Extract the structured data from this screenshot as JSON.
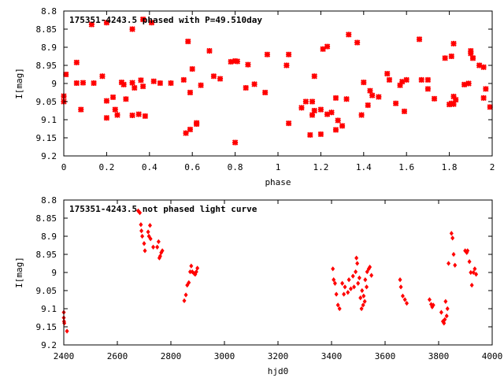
{
  "chart_data": [
    {
      "type": "scatter",
      "title": "175351-4243.5 phased with P=49.510day",
      "xlabel": "phase",
      "ylabel": "I[mag]",
      "xlim": [
        0,
        2
      ],
      "ylim": [
        9.2,
        8.8
      ],
      "y_inverted": true,
      "grid": false,
      "marker": "star",
      "color": "#ff0000",
      "x_ticks": [
        "0",
        "0.2",
        "0.4",
        "0.6",
        "0.8",
        "1",
        "1.2",
        "1.4",
        "1.6",
        "1.8",
        "2"
      ],
      "y_ticks": [
        "8.8",
        "8.85",
        "8.9",
        "8.95",
        "9",
        "9.05",
        "9.1",
        "9.15",
        "9.2"
      ],
      "series": [
        {
          "points": [
            [
              0.0,
              9.035
            ],
            [
              0.0,
              9.05
            ],
            [
              0.01,
              8.975
            ],
            [
              0.06,
              8.999
            ],
            [
              0.06,
              8.942
            ],
            [
              0.08,
              9.072
            ],
            [
              0.09,
              8.998
            ],
            [
              0.13,
              8.837
            ],
            [
              0.14,
              8.999
            ],
            [
              0.18,
              8.98
            ],
            [
              0.2,
              8.832
            ],
            [
              0.2,
              9.048
            ],
            [
              0.2,
              9.095
            ],
            [
              0.23,
              9.038
            ],
            [
              0.24,
              9.072
            ],
            [
              0.25,
              9.087
            ],
            [
              0.27,
              8.997
            ],
            [
              0.28,
              9.003
            ],
            [
              0.29,
              9.043
            ],
            [
              0.32,
              8.85
            ],
            [
              0.32,
              8.998
            ],
            [
              0.32,
              9.088
            ],
            [
              0.33,
              9.012
            ],
            [
              0.35,
              9.085
            ],
            [
              0.36,
              8.991
            ],
            [
              0.37,
              9.008
            ],
            [
              0.37,
              8.823
            ],
            [
              0.38,
              9.09
            ],
            [
              0.41,
              8.832
            ],
            [
              0.42,
              8.994
            ],
            [
              0.45,
              8.999
            ],
            [
              0.5,
              8.999
            ],
            [
              0.56,
              8.99
            ],
            [
              0.57,
              9.137
            ],
            [
              0.58,
              8.884
            ],
            [
              0.59,
              9.025
            ],
            [
              0.59,
              9.127
            ],
            [
              0.6,
              8.96
            ],
            [
              0.62,
              9.109
            ],
            [
              0.62,
              9.112
            ],
            [
              0.64,
              9.005
            ],
            [
              0.68,
              8.91
            ],
            [
              0.7,
              8.98
            ],
            [
              0.73,
              8.987
            ],
            [
              0.78,
              8.94
            ],
            [
              0.8,
              8.938
            ],
            [
              0.8,
              9.163
            ],
            [
              0.81,
              8.939
            ],
            [
              0.85,
              9.012
            ],
            [
              0.86,
              8.948
            ],
            [
              0.89,
              9.002
            ],
            [
              0.94,
              9.025
            ],
            [
              0.95,
              8.92
            ],
            [
              1.04,
              8.95
            ],
            [
              1.05,
              8.92
            ],
            [
              1.05,
              9.11
            ],
            [
              1.11,
              9.067
            ],
            [
              1.13,
              9.05
            ],
            [
              1.15,
              9.142
            ],
            [
              1.16,
              9.05
            ],
            [
              1.16,
              9.087
            ],
            [
              1.17,
              8.98
            ],
            [
              1.17,
              9.075
            ],
            [
              1.2,
              9.14
            ],
            [
              1.2,
              9.072
            ],
            [
              1.21,
              8.905
            ],
            [
              1.23,
              8.898
            ],
            [
              1.23,
              9.085
            ],
            [
              1.25,
              9.08
            ],
            [
              1.27,
              9.128
            ],
            [
              1.27,
              9.04
            ],
            [
              1.28,
              9.102
            ],
            [
              1.3,
              9.117
            ],
            [
              1.32,
              9.043
            ],
            [
              1.33,
              8.865
            ],
            [
              1.37,
              8.887
            ],
            [
              1.39,
              9.087
            ],
            [
              1.4,
              8.997
            ],
            [
              1.42,
              9.06
            ],
            [
              1.43,
              9.02
            ],
            [
              1.44,
              9.033
            ],
            [
              1.47,
              9.037
            ],
            [
              1.51,
              8.973
            ],
            [
              1.52,
              8.99
            ],
            [
              1.55,
              9.055
            ],
            [
              1.57,
              9.005
            ],
            [
              1.58,
              8.995
            ],
            [
              1.59,
              9.077
            ],
            [
              1.6,
              8.99
            ],
            [
              1.66,
              8.878
            ],
            [
              1.67,
              8.99
            ],
            [
              1.7,
              8.99
            ],
            [
              1.7,
              9.015
            ],
            [
              1.73,
              9.042
            ],
            [
              1.78,
              8.93
            ],
            [
              1.8,
              9.058
            ],
            [
              1.81,
              9.055
            ],
            [
              1.81,
              8.925
            ],
            [
              1.82,
              8.89
            ],
            [
              1.82,
              9.036
            ],
            [
              1.82,
              9.057
            ],
            [
              1.83,
              9.045
            ],
            [
              1.87,
              9.003
            ],
            [
              1.89,
              9.0
            ],
            [
              1.9,
              8.91
            ],
            [
              1.9,
              8.917
            ],
            [
              1.91,
              8.93
            ],
            [
              1.91,
              8.93
            ],
            [
              1.94,
              8.95
            ],
            [
              1.96,
              8.955
            ],
            [
              1.96,
              9.04
            ],
            [
              1.97,
              9.015
            ],
            [
              1.99,
              9.065
            ]
          ]
        }
      ]
    },
    {
      "type": "scatter",
      "title": "175351-4243.5 not phased light curve",
      "xlabel": "hjd0",
      "ylabel": "I[mag]",
      "xlim": [
        2400,
        4000
      ],
      "ylim": [
        9.2,
        8.8
      ],
      "y_inverted": true,
      "grid": false,
      "marker": "diamond",
      "color": "#ff0000",
      "x_ticks": [
        "2400",
        "2600",
        "2800",
        "3000",
        "3200",
        "3400",
        "3600",
        "3800",
        "4000"
      ],
      "y_ticks": [
        "8.8",
        "8.85",
        "8.9",
        "8.95",
        "9",
        "9.05",
        "9.1",
        "9.15",
        "9.2"
      ],
      "series": [
        {
          "points": [
            [
              2400,
              9.11
            ],
            [
              2400,
              9.125
            ],
            [
              2401,
              9.135
            ],
            [
              2402,
              9.14
            ],
            [
              2412,
              9.162
            ],
            [
              2678,
              8.83
            ],
            [
              2684,
              8.835
            ],
            [
              2688,
              8.868
            ],
            [
              2690,
              8.885
            ],
            [
              2693,
              8.9
            ],
            [
              2700,
              8.92
            ],
            [
              2703,
              8.94
            ],
            [
              2715,
              8.888
            ],
            [
              2718,
              8.9
            ],
            [
              2722,
              8.87
            ],
            [
              2724,
              8.907
            ],
            [
              2734,
              8.93
            ],
            [
              2749,
              8.93
            ],
            [
              2754,
              8.915
            ],
            [
              2757,
              8.96
            ],
            [
              2760,
              8.955
            ],
            [
              2764,
              8.945
            ],
            [
              2768,
              8.94
            ],
            [
              2850,
              9.078
            ],
            [
              2856,
              9.062
            ],
            [
              2861,
              9.035
            ],
            [
              2867,
              9.028
            ],
            [
              2872,
              8.998
            ],
            [
              2876,
              8.982
            ],
            [
              2880,
              8.998
            ],
            [
              2887,
              9.003
            ],
            [
              2891,
              9.005
            ],
            [
              2895,
              8.998
            ],
            [
              2899,
              8.988
            ],
            [
              3405,
              8.99
            ],
            [
              3408,
              9.02
            ],
            [
              3413,
              9.03
            ],
            [
              3418,
              9.06
            ],
            [
              3424,
              9.09
            ],
            [
              3430,
              9.1
            ],
            [
              3440,
              9.03
            ],
            [
              3446,
              9.06
            ],
            [
              3450,
              9.04
            ],
            [
              3461,
              9.055
            ],
            [
              3465,
              9.02
            ],
            [
              3472,
              9.045
            ],
            [
              3480,
              9.01
            ],
            [
              3484,
              9.04
            ],
            [
              3490,
              8.998
            ],
            [
              3493,
              8.96
            ],
            [
              3496,
              8.975
            ],
            [
              3499,
              9.03
            ],
            [
              3504,
              9.015
            ],
            [
              3508,
              9.07
            ],
            [
              3512,
              9.1
            ],
            [
              3514,
              9.05
            ],
            [
              3518,
              9.09
            ],
            [
              3520,
              9.065
            ],
            [
              3524,
              9.08
            ],
            [
              3526,
              9.02
            ],
            [
              3531,
              9.04
            ],
            [
              3533,
              8.998
            ],
            [
              3539,
              8.99
            ],
            [
              3543,
              8.985
            ],
            [
              3549,
              9.008
            ],
            [
              3656,
              9.02
            ],
            [
              3659,
              9.04
            ],
            [
              3666,
              9.065
            ],
            [
              3674,
              9.075
            ],
            [
              3681,
              9.085
            ],
            [
              3766,
              9.075
            ],
            [
              3772,
              9.088
            ],
            [
              3776,
              9.095
            ],
            [
              3780,
              9.09
            ],
            [
              3810,
              9.11
            ],
            [
              3816,
              9.135
            ],
            [
              3820,
              9.14
            ],
            [
              3823,
              9.13
            ],
            [
              3826,
              9.08
            ],
            [
              3830,
              9.12
            ],
            [
              3833,
              9.1
            ],
            [
              3837,
              8.975
            ],
            [
              3848,
              8.892
            ],
            [
              3852,
              8.905
            ],
            [
              3856,
              8.95
            ],
            [
              3861,
              8.98
            ],
            [
              3899,
              8.94
            ],
            [
              3905,
              8.945
            ],
            [
              3908,
              8.94
            ],
            [
              3915,
              8.97
            ],
            [
              3920,
              9.0
            ],
            [
              3924,
              9.035
            ],
            [
              3930,
              9.0
            ],
            [
              3935,
              8.99
            ],
            [
              3940,
              9.005
            ]
          ]
        }
      ]
    }
  ]
}
